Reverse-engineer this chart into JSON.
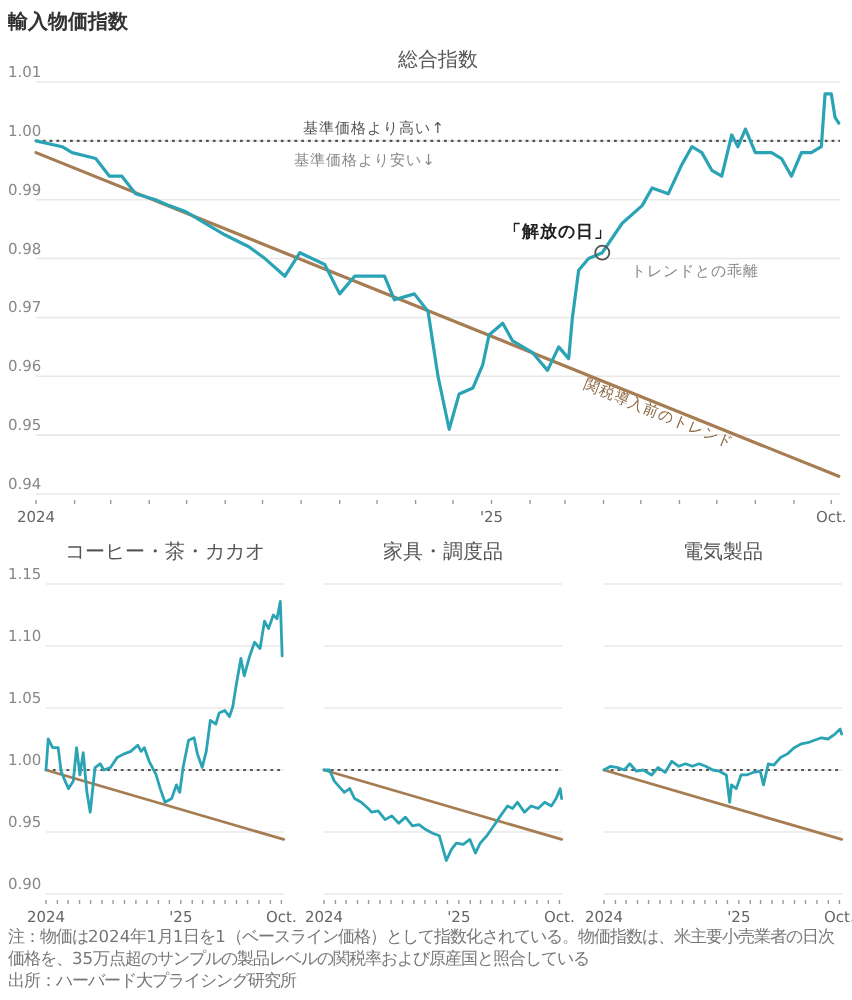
{
  "chart_data": [
    {
      "type": "line",
      "title": "輸入物価指数",
      "subtitle": "総合指数",
      "xlim": [
        "2024-01-01",
        "2025-10-08"
      ],
      "xticks": [
        {
          "value": "2024-01-01",
          "label": "2024"
        },
        {
          "value": "2024-02-01",
          "label": null
        },
        {
          "value": "2024-03-01",
          "label": null
        },
        {
          "value": "2024-04-01",
          "label": null
        },
        {
          "value": "2024-05-01",
          "label": null
        },
        {
          "value": "2024-06-01",
          "label": null
        },
        {
          "value": "2024-07-01",
          "label": null
        },
        {
          "value": "2024-08-01",
          "label": null
        },
        {
          "value": "2024-09-01",
          "label": null
        },
        {
          "value": "2024-10-01",
          "label": null
        },
        {
          "value": "2024-11-01",
          "label": null
        },
        {
          "value": "2024-12-01",
          "label": null
        },
        {
          "value": "2025-01-01",
          "label": "'25"
        },
        {
          "value": "2025-02-01",
          "label": null
        },
        {
          "value": "2025-03-01",
          "label": null
        },
        {
          "value": "2025-04-01",
          "label": null
        },
        {
          "value": "2025-05-01",
          "label": null
        },
        {
          "value": "2025-06-01",
          "label": null
        },
        {
          "value": "2025-07-01",
          "label": null
        },
        {
          "value": "2025-08-01",
          "label": null
        },
        {
          "value": "2025-09-01",
          "label": null
        },
        {
          "value": "2025-10-01",
          "label": "Oct."
        }
      ],
      "ylim": [
        0.94,
        1.01
      ],
      "yticks": [
        0.94,
        0.95,
        0.96,
        0.97,
        0.98,
        0.99,
        {
          "value": 1,
          "label": "1.00"
        },
        1.01
      ],
      "grid": "y",
      "ref_lines": [
        {
          "axis": "y",
          "value": 1,
          "label": "基準価格より高い↑",
          "line_style": "dotted"
        }
      ],
      "series": [
        {
          "color": "#2aa3b5",
          "x": [
            "2024-01-01",
            "2024-01-22",
            "2024-01-30",
            "2024-02-18",
            "2024-02-29",
            "2024-03-10",
            "2024-03-21",
            "2024-04-06",
            "2024-04-17",
            "2024-04-30",
            "2024-05-16",
            "2024-06-01",
            "2024-06-20",
            "2024-07-03",
            "2024-07-19",
            "2024-07-31",
            "2024-08-20",
            "2024-09-01",
            "2024-09-13",
            "2024-10-07",
            "2024-10-15",
            "2024-10-31",
            "2024-11-11",
            "2024-11-19",
            "2024-11-28",
            "2024-12-06",
            "2024-12-17",
            "2024-12-25",
            "2024-12-30",
            "2025-01-10",
            "2025-01-18",
            "2025-02-03",
            "2025-02-15",
            "2025-02-24",
            "2025-03-04",
            "2025-03-07",
            "2025-03-12",
            "2025-03-20",
            "2025-03-31",
            "2025-04-16",
            "2025-05-02",
            "2025-05-10",
            "2025-05-23",
            "2025-06-03",
            "2025-06-11",
            "2025-06-19",
            "2025-06-27",
            "2025-07-05",
            "2025-07-13",
            "2025-07-18",
            "2025-07-24",
            "2025-08-01",
            "2025-08-14",
            "2025-08-22",
            "2025-08-30",
            "2025-09-07",
            "2025-09-15",
            "2025-09-23",
            "2025-09-26",
            "2025-10-01",
            "2025-10-04",
            "2025-10-07"
          ],
          "values": [
            1.0,
            0.999,
            0.998,
            0.997,
            0.994,
            0.994,
            0.991,
            0.99,
            0.989,
            0.988,
            0.986,
            0.984,
            0.982,
            0.98,
            0.977,
            0.981,
            0.979,
            0.974,
            0.977,
            0.977,
            0.973,
            0.974,
            0.971,
            0.96,
            0.951,
            0.957,
            0.958,
            0.962,
            0.967,
            0.969,
            0.966,
            0.964,
            0.961,
            0.965,
            0.963,
            0.97,
            0.978,
            0.98,
            0.981,
            0.986,
            0.989,
            0.992,
            0.991,
            0.996,
            0.999,
            0.998,
            0.995,
            0.994,
            1.001,
            0.999,
            1.002,
            0.998,
            0.998,
            0.997,
            0.994,
            0.998,
            0.998,
            0.999,
            1.008,
            1.008,
            1.004,
            1.003
          ]
        },
        {
          "color": "#a67c52",
          "x": [
            "2024-01-01",
            "2025-10-07"
          ],
          "values": [
            0.998,
            0.943
          ]
        }
      ],
      "annotations": [
        {
          "text": "基準価格より安い↓",
          "x": "2024-09-21",
          "y": 1
        },
        {
          "text": "「解放の日」",
          "x": "2025-03-31",
          "y": 0.981
        },
        {
          "text": "関税導入前のトレンド",
          "x": "2025-05-20",
          "y": 0.956
        },
        "トレンドとの乖離"
      ]
    },
    {
      "type": "line",
      "title": "コーヒー・茶・カカオ",
      "xlim": [
        "2024-01-01",
        "2025-10-08"
      ],
      "xticks": [
        {
          "value": "2024-01-01",
          "label": "2024"
        },
        {
          "value": "2024-02-01",
          "label": null
        },
        {
          "value": "2024-03-01",
          "label": null
        },
        {
          "value": "2024-04-01",
          "label": null
        },
        {
          "value": "2024-05-01",
          "label": null
        },
        {
          "value": "2024-06-01",
          "label": null
        },
        {
          "value": "2024-07-01",
          "label": null
        },
        {
          "value": "2024-08-01",
          "label": null
        },
        {
          "value": "2024-09-01",
          "label": null
        },
        {
          "value": "2024-10-01",
          "label": null
        },
        {
          "value": "2024-11-01",
          "label": null
        },
        {
          "value": "2024-12-01",
          "label": null
        },
        {
          "value": "2025-01-01",
          "label": "'25"
        },
        {
          "value": "2025-02-01",
          "label": null
        },
        {
          "value": "2025-03-01",
          "label": null
        },
        {
          "value": "2025-04-01",
          "label": null
        },
        {
          "value": "2025-05-01",
          "label": null
        },
        {
          "value": "2025-06-01",
          "label": null
        },
        {
          "value": "2025-07-01",
          "label": null
        },
        {
          "value": "2025-08-01",
          "label": null
        },
        {
          "value": "2025-09-01",
          "label": null
        },
        {
          "value": "2025-10-01",
          "label": "Oct."
        }
      ],
      "ylim": [
        0.9,
        1.15
      ],
      "yticks": [
        {
          "value": 0.9,
          "label": "0.90"
        },
        0.95,
        {
          "value": 1,
          "label": "1.00"
        },
        1.05,
        {
          "value": 1.1,
          "label": "1.10"
        },
        1.15
      ],
      "grid": "y",
      "ref_lines": [
        {
          "axis": "y",
          "value": 1,
          "line_style": "dotted"
        }
      ],
      "series": [
        {
          "color": "#2aa3b5",
          "x": [
            "2024-01-01",
            "2024-01-07",
            "2024-01-19",
            "2024-02-03",
            "2024-02-11",
            "2024-02-22",
            "2024-03-02",
            "2024-03-15",
            "2024-03-24",
            "2024-04-02",
            "2024-04-11",
            "2024-04-21",
            "2024-04-30",
            "2024-05-13",
            "2024-05-27",
            "2024-06-06",
            "2024-06-24",
            "2024-07-12",
            "2024-07-31",
            "2024-08-18",
            "2024-09-06",
            "2024-09-15",
            "2024-09-24",
            "2024-10-07",
            "2024-10-26",
            "2024-11-06",
            "2024-11-19",
            "2024-12-07",
            "2024-12-20",
            "2024-12-29",
            "2025-01-07",
            "2025-01-22",
            "2025-02-06",
            "2025-02-15",
            "2025-02-28",
            "2025-03-11",
            "2025-03-22",
            "2025-04-06",
            "2025-04-15",
            "2025-04-30",
            "2025-05-13",
            "2025-05-22",
            "2025-05-31",
            "2025-06-13",
            "2025-06-22",
            "2025-07-07",
            "2025-07-20",
            "2025-08-04",
            "2025-08-16",
            "2025-08-27",
            "2025-09-09",
            "2025-09-19",
            "2025-09-28",
            "2025-10-03"
          ],
          "values": [
            1.0,
            1.025,
            1.018,
            1.018,
            0.999,
            0.991,
            0.985,
            0.991,
            1.018,
            0.996,
            1.014,
            0.982,
            0.966,
            1.002,
            1.005,
            1.0,
            1.002,
            1.01,
            1.013,
            1.015,
            1.02,
            1.015,
            1.018,
            1.007,
            0.996,
            0.985,
            0.974,
            0.977,
            0.988,
            0.982,
            1.002,
            1.024,
            1.026,
            1.013,
            1.002,
            1.015,
            1.04,
            1.037,
            1.046,
            1.048,
            1.043,
            1.051,
            1.068,
            1.09,
            1.076,
            1.092,
            1.103,
            1.098,
            1.12,
            1.114,
            1.125,
            1.122,
            1.136,
            1.092
          ]
        },
        {
          "color": "#a67c52",
          "x": [
            "2024-01-01",
            "2025-10-07"
          ],
          "values": [
            1.0,
            0.944
          ]
        }
      ]
    },
    {
      "type": "line",
      "title": "家具・調度品",
      "xlim": [
        "2024-01-01",
        "2025-10-08"
      ],
      "tick_labels": "x",
      "xticks": [
        {
          "value": "2024-01-01",
          "label": "2024"
        },
        {
          "value": "2024-02-01",
          "label": null
        },
        {
          "value": "2024-03-01",
          "label": null
        },
        {
          "value": "2024-04-01",
          "label": null
        },
        {
          "value": "2024-05-01",
          "label": null
        },
        {
          "value": "2024-06-01",
          "label": null
        },
        {
          "value": "2024-07-01",
          "label": null
        },
        {
          "value": "2024-08-01",
          "label": null
        },
        {
          "value": "2024-09-01",
          "label": null
        },
        {
          "value": "2024-10-01",
          "label": null
        },
        {
          "value": "2024-11-01",
          "label": null
        },
        {
          "value": "2024-12-01",
          "label": null
        },
        {
          "value": "2025-01-01",
          "label": "'25"
        },
        {
          "value": "2025-02-01",
          "label": null
        },
        {
          "value": "2025-03-01",
          "label": null
        },
        {
          "value": "2025-04-01",
          "label": null
        },
        {
          "value": "2025-05-01",
          "label": null
        },
        {
          "value": "2025-06-01",
          "label": null
        },
        {
          "value": "2025-07-01",
          "label": null
        },
        {
          "value": "2025-08-01",
          "label": null
        },
        {
          "value": "2025-09-01",
          "label": null
        },
        {
          "value": "2025-10-01",
          "label": "Oct."
        }
      ],
      "ylim": [
        0.9,
        1.15
      ],
      "yticks": [
        0.9,
        0.95,
        1,
        1.05,
        1.1,
        1.15
      ],
      "grid": "y",
      "ref_lines": [
        {
          "axis": "y",
          "value": 1,
          "line_style": "dotted"
        }
      ],
      "series": [
        {
          "color": "#2aa3b5",
          "x": [
            "2024-01-01",
            "2024-01-16",
            "2024-01-29",
            "2024-02-16",
            "2024-02-25",
            "2024-03-11",
            "2024-03-24",
            "2024-04-11",
            "2024-04-30",
            "2024-05-09",
            "2024-05-27",
            "2024-06-15",
            "2024-07-03",
            "2024-07-22",
            "2024-08-09",
            "2024-08-28",
            "2024-09-15",
            "2024-10-03",
            "2024-10-22",
            "2024-11-09",
            "2024-11-28",
            "2024-12-12",
            "2024-12-25",
            "2025-01-13",
            "2025-01-31",
            "2025-02-15",
            "2025-02-28",
            "2025-03-18",
            "2025-04-06",
            "2025-04-24",
            "2025-05-13",
            "2025-05-27",
            "2025-06-09",
            "2025-06-28",
            "2025-07-16",
            "2025-08-04",
            "2025-08-22",
            "2025-09-09",
            "2025-09-22",
            "2025-10-03",
            "2025-10-07"
          ],
          "values": [
            1.0,
            1.0,
            0.991,
            0.985,
            0.982,
            0.985,
            0.977,
            0.974,
            0.969,
            0.966,
            0.967,
            0.96,
            0.963,
            0.957,
            0.962,
            0.955,
            0.956,
            0.952,
            0.949,
            0.947,
            0.927,
            0.936,
            0.941,
            0.94,
            0.944,
            0.933,
            0.941,
            0.947,
            0.955,
            0.963,
            0.971,
            0.969,
            0.974,
            0.966,
            0.971,
            0.969,
            0.974,
            0.971,
            0.977,
            0.985,
            0.977
          ]
        },
        {
          "color": "#a67c52",
          "x": [
            "2024-01-01",
            "2025-10-07"
          ],
          "values": [
            1.0,
            0.944
          ]
        }
      ]
    },
    {
      "type": "line",
      "title": "電気製品",
      "xlim": [
        "2024-01-01",
        "2025-10-08"
      ],
      "tick_labels": "x",
      "xticks": [
        {
          "value": "2024-01-01",
          "label": "2024"
        },
        {
          "value": "2024-02-01",
          "label": null
        },
        {
          "value": "2024-03-01",
          "label": null
        },
        {
          "value": "2024-04-01",
          "label": null
        },
        {
          "value": "2024-05-01",
          "label": null
        },
        {
          "value": "2024-06-01",
          "label": null
        },
        {
          "value": "2024-07-01",
          "label": null
        },
        {
          "value": "2024-08-01",
          "label": null
        },
        {
          "value": "2024-09-01",
          "label": null
        },
        {
          "value": "2024-10-01",
          "label": null
        },
        {
          "value": "2024-11-01",
          "label": null
        },
        {
          "value": "2024-12-01",
          "label": null
        },
        {
          "value": "2025-01-01",
          "label": "'25"
        },
        {
          "value": "2025-02-01",
          "label": null
        },
        {
          "value": "2025-03-01",
          "label": null
        },
        {
          "value": "2025-04-01",
          "label": null
        },
        {
          "value": "2025-05-01",
          "label": null
        },
        {
          "value": "2025-06-01",
          "label": null
        },
        {
          "value": "2025-07-01",
          "label": null
        },
        {
          "value": "2025-08-01",
          "label": null
        },
        {
          "value": "2025-09-01",
          "label": null
        },
        {
          "value": "2025-10-01",
          "label": "Oct."
        }
      ],
      "ylim": [
        0.9,
        1.15
      ],
      "yticks": [
        0.9,
        0.95,
        1,
        1.05,
        1.1,
        1.15
      ],
      "grid": "y",
      "ref_lines": [
        {
          "axis": "y",
          "value": 1,
          "line_style": "dotted"
        }
      ],
      "series": [
        {
          "color": "#2aa3b5",
          "x": [
            "2024-01-01",
            "2024-01-19",
            "2024-02-07",
            "2024-02-25",
            "2024-03-11",
            "2024-03-29",
            "2024-04-17",
            "2024-05-09",
            "2024-05-27",
            "2024-06-15",
            "2024-07-03",
            "2024-07-22",
            "2024-08-09",
            "2024-08-28",
            "2024-09-15",
            "2024-10-03",
            "2024-10-22",
            "2024-11-09",
            "2024-11-28",
            "2024-12-07",
            "2024-12-12",
            "2024-12-25",
            "2025-01-07",
            "2025-01-22",
            "2025-02-09",
            "2025-02-28",
            "2025-03-09",
            "2025-03-22",
            "2025-04-06",
            "2025-04-24",
            "2025-05-13",
            "2025-05-31",
            "2025-06-19",
            "2025-07-07",
            "2025-07-25",
            "2025-08-13",
            "2025-08-31",
            "2025-09-19",
            "2025-10-03",
            "2025-10-07"
          ],
          "values": [
            1.0,
            1.003,
            1.002,
            1.0,
            1.005,
            0.999,
            1.0,
            0.996,
            1.002,
            0.998,
            1.007,
            1.003,
            1.005,
            1.003,
            1.005,
            1.003,
            1.0,
            0.999,
            0.996,
            0.974,
            0.988,
            0.985,
            0.996,
            0.996,
            0.998,
            0.999,
            0.988,
            1.005,
            1.004,
            1.01,
            1.013,
            1.018,
            1.021,
            1.022,
            1.024,
            1.026,
            1.025,
            1.029,
            1.033,
            1.029
          ]
        },
        {
          "color": "#a67c52",
          "x": [
            "2024-01-01",
            "2025-10-07"
          ],
          "values": [
            1.0,
            0.944
          ]
        }
      ],
      "annotations": [
        "注：物価は2024年1月1日を1（ベースライン価格）として指数化されている。物価指数は、米主要小売業者の日次価格を、35万点超のサンプルの製品レベルの関税率および原産国と照合している",
        "出所：ハーバード大プライシング研究所"
      ]
    }
  ]
}
